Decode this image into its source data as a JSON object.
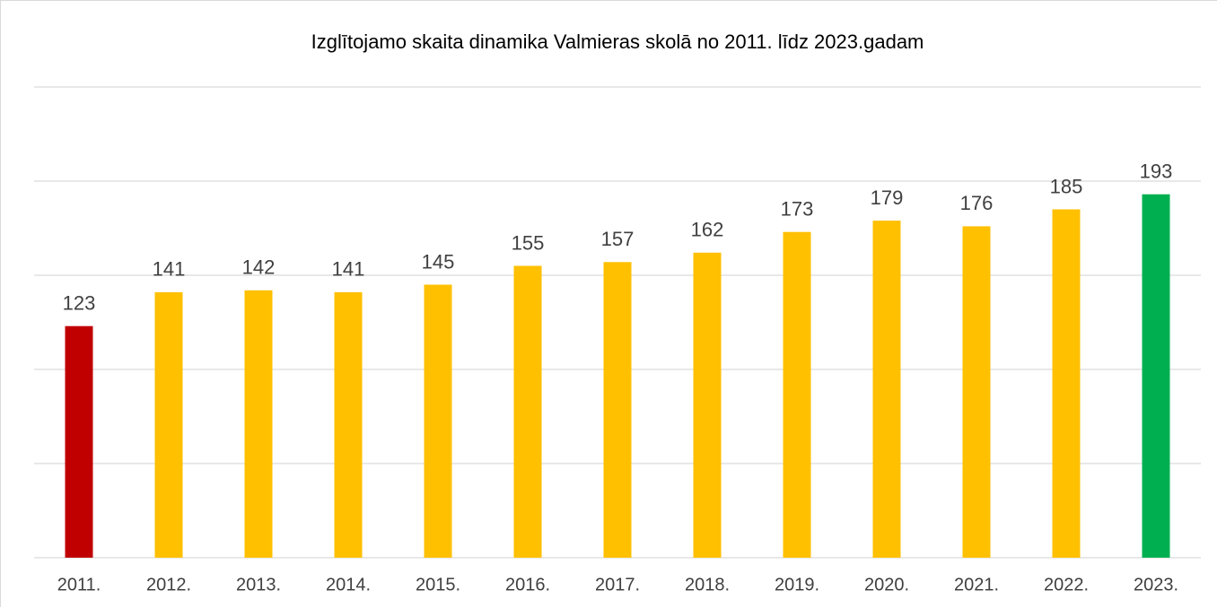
{
  "chart_data": {
    "type": "bar",
    "title": "Izglītojamo skaita dinamika Valmieras skolā no 2011. līdz 2023.gadam",
    "categories": [
      "2011.",
      "2012.",
      "2013.",
      "2014.",
      "2015.",
      "2016.",
      "2017.",
      "2018.",
      "2019.",
      "2020.",
      "2021.",
      "2022.",
      "2023."
    ],
    "values": [
      123,
      141,
      142,
      141,
      145,
      155,
      157,
      162,
      173,
      179,
      176,
      185,
      193
    ],
    "colors": [
      "#c00000",
      "#ffc000",
      "#ffc000",
      "#ffc000",
      "#ffc000",
      "#ffc000",
      "#ffc000",
      "#ffc000",
      "#ffc000",
      "#ffc000",
      "#ffc000",
      "#ffc000",
      "#00b050"
    ],
    "ylim": [
      0,
      250
    ],
    "yticks": [
      0,
      50,
      100,
      150,
      200,
      250
    ],
    "grid": true
  }
}
